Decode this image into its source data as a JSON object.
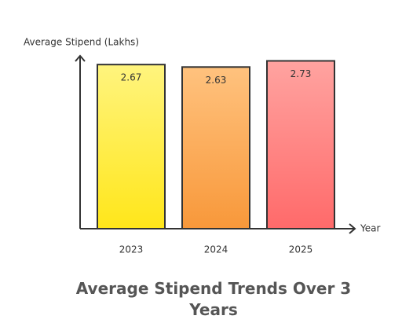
{
  "chart_data": {
    "type": "bar",
    "title": "Average Stipend Trends Over 3 Years",
    "y_label": "Average Stipend (Lakhs)",
    "x_label": "Year",
    "categories": [
      "2023",
      "2024",
      "2025"
    ],
    "values": [
      2.67,
      2.63,
      2.73
    ],
    "colors": [
      [
        "#fff47e",
        "#ffe61a"
      ],
      [
        "#ffc27e",
        "#f8983a"
      ],
      [
        "#ffa3a0",
        "#ff6a6a"
      ]
    ],
    "ylim": [
      0,
      2.8
    ]
  }
}
